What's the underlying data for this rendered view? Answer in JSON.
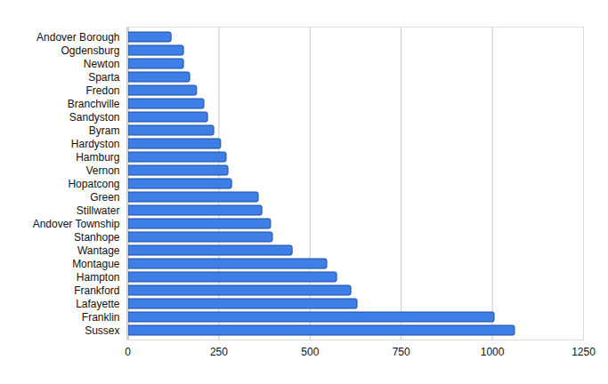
{
  "chart_data": {
    "type": "bar",
    "orientation": "horizontal",
    "categories": [
      "Andover Borough",
      "Ogdensburg",
      "Newton",
      "Sparta",
      "Fredon",
      "Branchville",
      "Sandyston",
      "Byram",
      "Hardyston",
      "Hamburg",
      "Vernon",
      "Hopatcong",
      "Green",
      "Stillwater",
      "Andover Township",
      "Stanhope",
      "Wantage",
      "Montague",
      "Hampton",
      "Frankford",
      "Lafayette",
      "Franklin",
      "Sussex"
    ],
    "values": [
      120,
      154,
      154,
      171,
      190,
      210,
      220,
      237,
      256,
      271,
      276,
      286,
      359,
      369,
      393,
      398,
      452,
      547,
      574,
      613,
      630,
      1006,
      1062
    ],
    "color": "#3d7fe6",
    "xlim": [
      0,
      1250
    ],
    "xticks": [
      0,
      250,
      500,
      750,
      1000,
      1250
    ],
    "grid": true
  }
}
